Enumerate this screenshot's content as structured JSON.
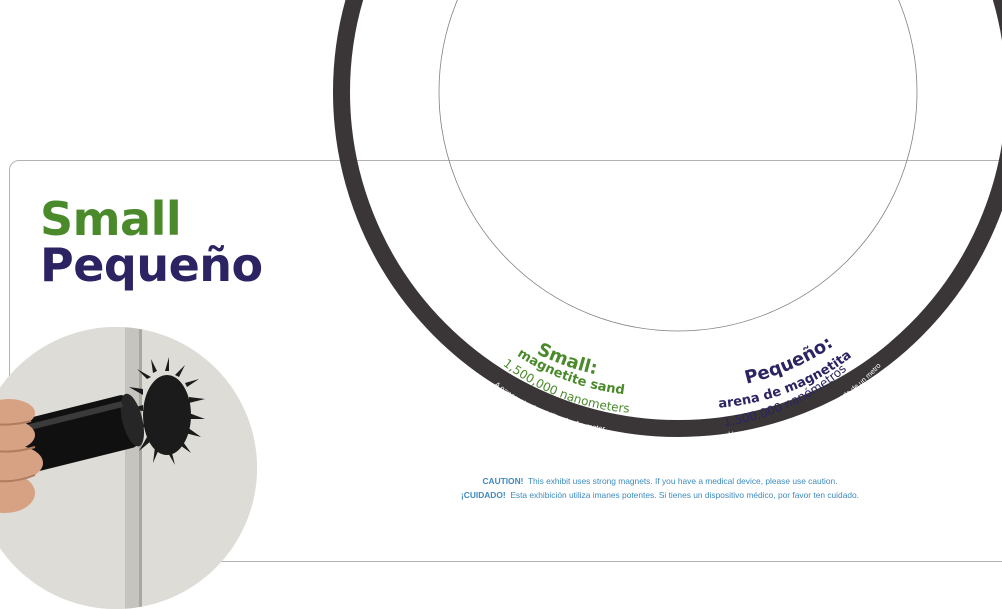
{
  "title": {
    "english": "Small",
    "spanish": "Pequeño"
  },
  "disc": {
    "english": {
      "heading": "Small:",
      "subheading": "magnetite sand",
      "measure": "1,500,000 nanometers",
      "footnote": "A nanometer is a billionth of a meter"
    },
    "spanish": {
      "heading": "Pequeño:",
      "subheading": "arena de magnetita",
      "measure": "1,500,000 nanómetros",
      "footnote": "Un nanómetro es la mil millonésima parte de un metro"
    }
  },
  "caution": {
    "english_label": "CAUTION!",
    "english_text": "This exhibit uses strong magnets. If you have a medical device, please use caution.",
    "spanish_label": "¡CUIDADO!",
    "spanish_text": "Esta exhibición utiliza imanes potentes. Si tienes un dispositivo médico, por favor ten cuidado."
  },
  "colors": {
    "green": "#4a8a2a",
    "navy": "#2b2362",
    "ring": "#3a3638",
    "caution_blue": "#3d8bbf",
    "photo_background": "#dcdbd6"
  },
  "icons": {
    "photo": "magnet-with-magnetite-sand-photo"
  }
}
